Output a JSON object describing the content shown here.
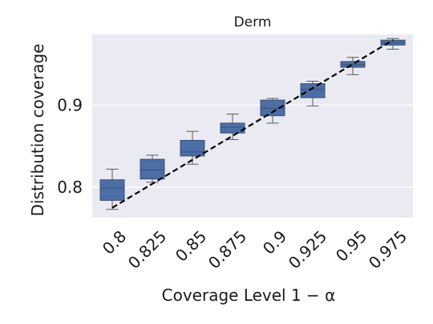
{
  "chart_data": {
    "type": "box",
    "title": "Derm",
    "xlabel": "Coverage Level 1 − α",
    "ylabel": "Distribution coverage",
    "categories": [
      "0.8",
      "0.825",
      "0.85",
      "0.875",
      "0.9",
      "0.925",
      "0.95",
      "0.975"
    ],
    "boxes": [
      {
        "x": 0.8,
        "whisker_low": 0.773,
        "q1": 0.784,
        "median": 0.799,
        "q3": 0.809,
        "whisker_high": 0.822
      },
      {
        "x": 0.825,
        "whisker_low": 0.806,
        "q1": 0.81,
        "median": 0.821,
        "q3": 0.834,
        "whisker_high": 0.839
      },
      {
        "x": 0.85,
        "whisker_low": 0.828,
        "q1": 0.838,
        "median": 0.843,
        "q3": 0.857,
        "whisker_high": 0.868
      },
      {
        "x": 0.875,
        "whisker_low": 0.858,
        "q1": 0.866,
        "median": 0.873,
        "q3": 0.878,
        "whisker_high": 0.889
      },
      {
        "x": 0.9,
        "whisker_low": 0.878,
        "q1": 0.887,
        "median": 0.896,
        "q3": 0.906,
        "whisker_high": 0.908
      },
      {
        "x": 0.925,
        "whisker_low": 0.899,
        "q1": 0.909,
        "median": 0.919,
        "q3": 0.926,
        "whisker_high": 0.929
      },
      {
        "x": 0.95,
        "whisker_low": 0.937,
        "q1": 0.946,
        "median": 0.949,
        "q3": 0.953,
        "whisker_high": 0.958
      },
      {
        "x": 0.975,
        "whisker_low": 0.968,
        "q1": 0.973,
        "median": 0.976,
        "q3": 0.979,
        "whisker_high": 0.981
      }
    ],
    "reference_line": {
      "style": "dashed",
      "color": "#000000",
      "from": [
        0.8,
        0.775
      ],
      "to": [
        0.975,
        0.979
      ]
    },
    "yticks": [
      0.8,
      0.9
    ],
    "ytick_labels": [
      "0.8",
      "0.9"
    ],
    "ylim": [
      0.763,
      0.986
    ],
    "grid": true,
    "colors": {
      "background": "#eaeaf2",
      "grid": "#ffffff",
      "box_fill": "#4c6ea6",
      "box_edge": "#3d4f73",
      "whisker": "#5a5a5a"
    }
  }
}
